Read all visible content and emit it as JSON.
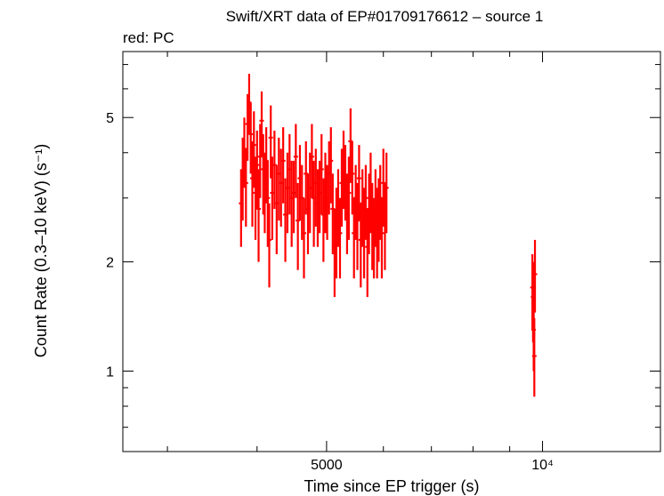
{
  "chart_data": {
    "type": "scatter",
    "title": "Swift/XRT data of EP#01709176612 – source 1",
    "subtitle": "red: PC",
    "xlabel": "Time since EP trigger (s)",
    "ylabel": "Count Rate (0.3–10 keV) (s⁻¹)",
    "xscale": "log",
    "yscale": "log",
    "xlim": [
      2600,
      14600
    ],
    "ylim": [
      0.6,
      7.6
    ],
    "x_major_ticks": [
      {
        "value": 5000,
        "label": "5000"
      },
      {
        "value": 10000,
        "label": "10⁴"
      }
    ],
    "y_major_ticks": [
      {
        "value": 1,
        "label": "1"
      },
      {
        "value": 2,
        "label": "2"
      },
      {
        "value": 5,
        "label": "5"
      }
    ],
    "x_minor_ticks": [
      3000,
      4000,
      6000,
      7000,
      8000,
      9000
    ],
    "y_minor_ticks": [
      0.7,
      0.8,
      0.9,
      3,
      4,
      6,
      7
    ],
    "grid": false,
    "legend": "none",
    "series": [
      {
        "name": "PC",
        "color": "#ff0000",
        "points": [
          [
            3800,
            2.9,
            2.2,
            3.6
          ],
          [
            3820,
            3.5,
            2.6,
            4.4
          ],
          [
            3840,
            4.1,
            3.2,
            5.0
          ],
          [
            3860,
            3.3,
            2.5,
            4.1
          ],
          [
            3880,
            4.8,
            3.8,
            5.8
          ],
          [
            3900,
            5.5,
            4.5,
            6.6
          ],
          [
            3920,
            4.5,
            3.5,
            5.5
          ],
          [
            3940,
            3.4,
            2.5,
            4.3
          ],
          [
            3960,
            4.2,
            3.2,
            5.2
          ],
          [
            3980,
            3.1,
            2.3,
            3.9
          ],
          [
            4000,
            3.7,
            2.8,
            4.6
          ],
          [
            4020,
            2.8,
            2.0,
            3.6
          ],
          [
            4040,
            3.9,
            3.0,
            4.8
          ],
          [
            4060,
            4.9,
            3.9,
            5.9
          ],
          [
            4080,
            3.6,
            2.7,
            4.5
          ],
          [
            4100,
            3.2,
            2.4,
            4.0
          ],
          [
            4120,
            3.8,
            2.9,
            4.7
          ],
          [
            4140,
            3.0,
            2.2,
            3.8
          ],
          [
            4160,
            2.3,
            1.7,
            2.9
          ],
          [
            4180,
            4.4,
            3.4,
            5.4
          ],
          [
            4200,
            3.1,
            2.3,
            3.9
          ],
          [
            4230,
            3.7,
            2.8,
            4.6
          ],
          [
            4260,
            2.9,
            2.1,
            3.7
          ],
          [
            4290,
            3.5,
            2.6,
            4.4
          ],
          [
            4320,
            3.3,
            2.5,
            4.1
          ],
          [
            4350,
            3.8,
            2.9,
            4.7
          ],
          [
            4380,
            2.7,
            2.0,
            3.4
          ],
          [
            4410,
            3.2,
            2.4,
            4.0
          ],
          [
            4440,
            3.6,
            2.7,
            4.5
          ],
          [
            4470,
            3.0,
            2.2,
            3.8
          ],
          [
            4500,
            3.1,
            2.4,
            3.8
          ],
          [
            4530,
            3.9,
            3.0,
            4.8
          ],
          [
            4560,
            2.6,
            1.9,
            3.3
          ],
          [
            4590,
            3.4,
            2.6,
            4.2
          ],
          [
            4620,
            3.0,
            2.3,
            3.7
          ],
          [
            4650,
            2.4,
            1.8,
            3.0
          ],
          [
            4680,
            3.5,
            2.7,
            4.3
          ],
          [
            4710,
            2.8,
            2.1,
            3.5
          ],
          [
            4740,
            3.2,
            2.4,
            4.0
          ],
          [
            4770,
            3.9,
            3.0,
            4.8
          ],
          [
            4800,
            3.0,
            2.2,
            3.8
          ],
          [
            4830,
            3.3,
            2.5,
            4.1
          ],
          [
            4860,
            2.9,
            2.2,
            3.6
          ],
          [
            4890,
            3.1,
            2.4,
            3.8
          ],
          [
            4920,
            3.6,
            2.7,
            4.5
          ],
          [
            4950,
            2.7,
            2.0,
            3.4
          ],
          [
            4980,
            3.2,
            2.4,
            4.0
          ],
          [
            5010,
            3.0,
            2.3,
            3.7
          ],
          [
            5040,
            3.5,
            2.7,
            4.3
          ],
          [
            5070,
            3.8,
            2.9,
            4.7
          ],
          [
            5100,
            2.8,
            2.1,
            3.5
          ],
          [
            5130,
            2.2,
            1.6,
            2.8
          ],
          [
            5160,
            2.5,
            1.8,
            3.2
          ],
          [
            5190,
            2.9,
            2.2,
            3.6
          ],
          [
            5220,
            2.4,
            1.8,
            3.0
          ],
          [
            5250,
            3.3,
            2.5,
            4.1
          ],
          [
            5280,
            3.7,
            2.8,
            4.6
          ],
          [
            5310,
            3.4,
            2.6,
            4.2
          ],
          [
            5340,
            2.8,
            2.1,
            3.5
          ],
          [
            5370,
            3.1,
            2.3,
            3.9
          ],
          [
            5400,
            4.3,
            3.3,
            5.3
          ],
          [
            5430,
            3.5,
            2.7,
            4.3
          ],
          [
            5460,
            2.4,
            1.8,
            3.0
          ],
          [
            5490,
            3.0,
            2.3,
            3.7
          ],
          [
            5520,
            2.6,
            1.9,
            3.3
          ],
          [
            5550,
            3.4,
            2.6,
            4.2
          ],
          [
            5580,
            2.3,
            1.7,
            2.9
          ],
          [
            5610,
            2.9,
            2.2,
            3.6
          ],
          [
            5640,
            2.5,
            1.8,
            3.2
          ],
          [
            5670,
            3.0,
            2.3,
            3.7
          ],
          [
            5700,
            2.2,
            1.6,
            2.8
          ],
          [
            5730,
            2.8,
            2.1,
            3.5
          ],
          [
            5760,
            3.2,
            2.4,
            4.0
          ],
          [
            5790,
            2.6,
            1.9,
            3.3
          ],
          [
            5820,
            2.4,
            1.8,
            3.0
          ],
          [
            5850,
            2.9,
            2.2,
            3.6
          ],
          [
            5880,
            2.5,
            1.8,
            3.2
          ],
          [
            5910,
            2.7,
            2.0,
            3.4
          ],
          [
            5940,
            3.0,
            2.3,
            3.7
          ],
          [
            5970,
            2.4,
            1.8,
            3.0
          ],
          [
            6000,
            3.3,
            2.5,
            4.1
          ],
          [
            6030,
            2.6,
            1.9,
            3.3
          ],
          [
            6060,
            3.2,
            2.4,
            4.0
          ],
          [
            9680,
            1.7,
            1.3,
            2.1
          ],
          [
            9700,
            1.6,
            1.2,
            2.0
          ],
          [
            9720,
            1.3,
            1.0,
            1.6
          ],
          [
            9740,
            1.1,
            0.85,
            1.4
          ],
          [
            9760,
            1.85,
            1.45,
            2.3
          ]
        ]
      }
    ]
  }
}
